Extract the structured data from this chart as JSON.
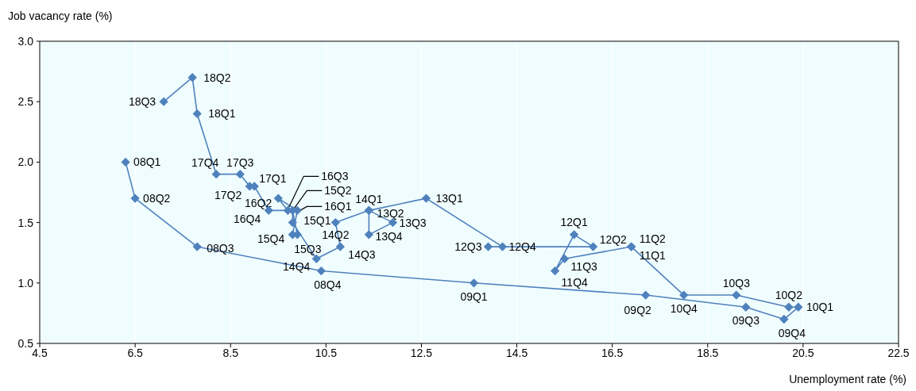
{
  "chart_data": {
    "type": "line",
    "xlabel": "Unemployment rate (%)",
    "ylabel": "Job vacancy rate (%)",
    "x": [
      6.3,
      6.5,
      7.8,
      10.4,
      13.6,
      17.2,
      19.3,
      20.1,
      20.4,
      20.2,
      19.1,
      18.0,
      16.9,
      16.9,
      15.5,
      15.3,
      15.7,
      16.1,
      13.9,
      14.2,
      12.6,
      11.4,
      11.9,
      11.4,
      11.4,
      10.7,
      10.8,
      10.3,
      9.8,
      9.8,
      9.9,
      9.8,
      9.9,
      9.5,
      9.7,
      9.3,
      9.0,
      8.9,
      8.7,
      8.2,
      7.8,
      7.7,
      7.1
    ],
    "series": [
      {
        "color": "#4f81bd",
        "values": [
          2.0,
          1.7,
          1.3,
          1.1,
          1.0,
          0.9,
          0.8,
          0.7,
          0.8,
          0.8,
          0.9,
          0.9,
          1.3,
          1.3,
          1.2,
          1.1,
          1.4,
          1.3,
          1.3,
          1.3,
          1.7,
          1.6,
          1.5,
          1.4,
          1.6,
          1.5,
          1.3,
          1.2,
          1.5,
          1.6,
          1.4,
          1.4,
          1.6,
          1.7,
          1.6,
          1.6,
          1.8,
          1.8,
          1.9,
          1.9,
          2.4,
          2.7,
          2.5
        ]
      }
    ],
    "marker": "diamond",
    "grid": "x",
    "legend": false,
    "xlim": [
      4.5,
      22.5
    ],
    "xticks": [
      {
        "value": 4.5,
        "label": "4.5"
      },
      {
        "value": 6.5,
        "label": "6.5"
      },
      {
        "value": 8.5,
        "label": "8.5"
      },
      {
        "value": 10.5,
        "label": "10.5"
      },
      {
        "value": 12.5,
        "label": "12.5"
      },
      {
        "value": 14.5,
        "label": "14.5"
      },
      {
        "value": 16.5,
        "label": "16.5"
      },
      {
        "value": 18.5,
        "label": "18.5"
      },
      {
        "value": 20.5,
        "label": "20.5"
      },
      {
        "value": 22.5,
        "label": "22.5"
      }
    ],
    "ylim": [
      0.5,
      3.0
    ],
    "yticks": [
      {
        "value": 0.5,
        "label": "0.5"
      },
      {
        "value": 1.0,
        "label": "1.0"
      },
      {
        "value": 1.5,
        "label": "1.5"
      },
      {
        "value": 2.0,
        "label": "2.0"
      },
      {
        "value": 2.5,
        "label": "2.5"
      },
      {
        "value": 3.0,
        "label": "3.0"
      }
    ],
    "annotations": [
      {
        "text": "08Q1",
        "x": 6.3,
        "y": 2.0
      },
      {
        "text": "08Q2",
        "x": 6.5,
        "y": 1.7
      },
      {
        "text": "08Q3",
        "x": 7.8,
        "y": 1.3
      },
      {
        "text": "08Q4",
        "x": 10.4,
        "y": 1.1
      },
      {
        "text": "09Q1",
        "x": 13.6,
        "y": 1.0
      },
      {
        "text": "09Q2",
        "x": 17.2,
        "y": 0.9
      },
      {
        "text": "09Q3",
        "x": 19.3,
        "y": 0.8
      },
      {
        "text": "09Q4",
        "x": 20.1,
        "y": 0.7
      },
      {
        "text": "10Q1",
        "x": 20.4,
        "y": 0.8
      },
      {
        "text": "10Q2",
        "x": 20.2,
        "y": 0.8
      },
      {
        "text": "10Q3",
        "x": 19.1,
        "y": 0.9
      },
      {
        "text": "10Q4",
        "x": 18.0,
        "y": 0.9
      },
      {
        "text": "11Q1",
        "x": 16.9,
        "y": 1.3
      },
      {
        "text": "11Q2",
        "x": 16.9,
        "y": 1.3
      },
      {
        "text": "11Q3",
        "x": 15.5,
        "y": 1.2
      },
      {
        "text": "11Q4",
        "x": 15.3,
        "y": 1.1
      },
      {
        "text": "12Q1",
        "x": 15.7,
        "y": 1.4
      },
      {
        "text": "12Q2",
        "x": 16.1,
        "y": 1.3
      },
      {
        "text": "12Q3",
        "x": 13.9,
        "y": 1.3
      },
      {
        "text": "12Q4",
        "x": 14.2,
        "y": 1.3
      },
      {
        "text": "13Q1",
        "x": 12.6,
        "y": 1.7
      },
      {
        "text": "13Q2",
        "x": 11.4,
        "y": 1.6
      },
      {
        "text": "13Q3",
        "x": 11.9,
        "y": 1.5
      },
      {
        "text": "13Q4",
        "x": 11.4,
        "y": 1.4
      },
      {
        "text": "14Q1",
        "x": 11.4,
        "y": 1.6
      },
      {
        "text": "14Q2",
        "x": 10.7,
        "y": 1.5
      },
      {
        "text": "14Q3",
        "x": 10.8,
        "y": 1.3
      },
      {
        "text": "14Q4",
        "x": 10.3,
        "y": 1.2
      },
      {
        "text": "15Q1",
        "x": 9.8,
        "y": 1.5
      },
      {
        "text": "15Q2",
        "x": 9.8,
        "y": 1.6
      },
      {
        "text": "15Q3",
        "x": 9.9,
        "y": 1.4
      },
      {
        "text": "15Q4",
        "x": 9.8,
        "y": 1.4
      },
      {
        "text": "16Q1",
        "x": 9.9,
        "y": 1.6
      },
      {
        "text": "16Q2",
        "x": 9.5,
        "y": 1.7
      },
      {
        "text": "16Q3",
        "x": 9.7,
        "y": 1.6
      },
      {
        "text": "16Q4",
        "x": 9.3,
        "y": 1.6
      },
      {
        "text": "17Q1",
        "x": 9.0,
        "y": 1.8
      },
      {
        "text": "17Q2",
        "x": 8.9,
        "y": 1.8
      },
      {
        "text": "17Q3",
        "x": 8.7,
        "y": 1.9
      },
      {
        "text": "17Q4",
        "x": 8.2,
        "y": 1.9
      },
      {
        "text": "18Q1",
        "x": 7.8,
        "y": 2.4
      },
      {
        "text": "18Q2",
        "x": 7.7,
        "y": 2.7
      },
      {
        "text": "18Q3",
        "x": 7.1,
        "y": 2.5
      }
    ]
  }
}
